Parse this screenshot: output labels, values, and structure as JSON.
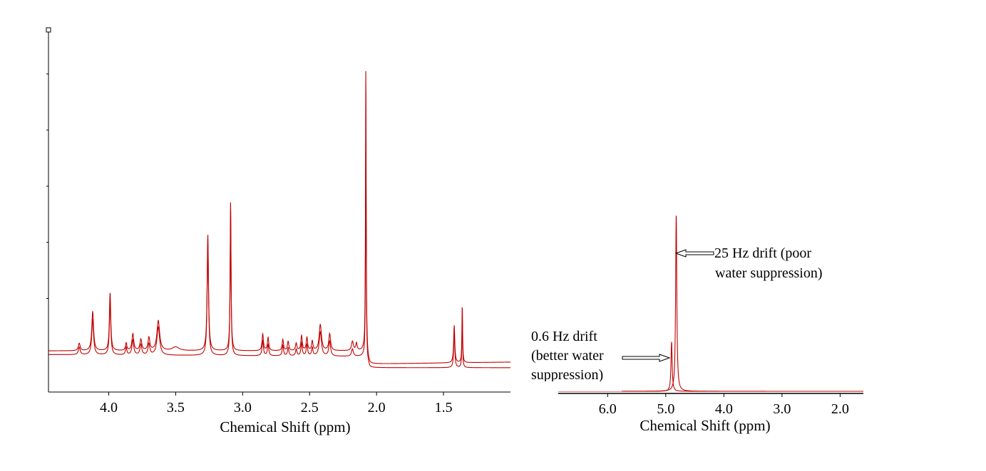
{
  "colors": {
    "trace": "#c00000",
    "axis": "#000000",
    "background": "#ffffff"
  },
  "chart_data": [
    {
      "type": "line",
      "name": "full-spectrum",
      "xlabel": "Chemical Shift (ppm)",
      "ylabel": "",
      "xlim": [
        4.45,
        1.0
      ],
      "x_reversed": true,
      "ylim": [
        0,
        1.0
      ],
      "x_ticks": [
        4.0,
        3.5,
        3.0,
        2.5,
        2.0,
        1.5
      ],
      "x_tick_labels": [
        "4.0",
        "3.5",
        "3.0",
        "2.5",
        "2.0",
        "1.5"
      ],
      "y_ticks": [
        0.25,
        0.4,
        0.55,
        0.7,
        0.85
      ],
      "series": [
        {
          "name": "trace-upper",
          "baseline": [
            [
              4.45,
              0.11
            ],
            [
              2.1,
              0.11
            ],
            [
              2.05,
              0.075
            ],
            [
              1.0,
              0.08
            ]
          ],
          "peaks": [
            [
              4.22,
              0.02,
              0.008
            ],
            [
              4.12,
              0.105,
              0.008
            ],
            [
              3.99,
              0.155,
              0.006
            ],
            [
              3.87,
              0.02,
              0.006
            ],
            [
              3.82,
              0.045,
              0.008
            ],
            [
              3.76,
              0.03,
              0.008
            ],
            [
              3.7,
              0.035,
              0.008
            ],
            [
              3.63,
              0.08,
              0.012
            ],
            [
              3.5,
              0.01,
              0.03
            ],
            [
              3.26,
              0.31,
              0.006
            ],
            [
              3.09,
              0.4,
              0.004
            ],
            [
              2.85,
              0.045,
              0.006
            ],
            [
              2.81,
              0.035,
              0.006
            ],
            [
              2.7,
              0.03,
              0.006
            ],
            [
              2.66,
              0.025,
              0.006
            ],
            [
              2.6,
              0.02,
              0.006
            ],
            [
              2.56,
              0.04,
              0.006
            ],
            [
              2.52,
              0.035,
              0.006
            ],
            [
              2.48,
              0.025,
              0.006
            ],
            [
              2.42,
              0.07,
              0.01
            ],
            [
              2.35,
              0.045,
              0.008
            ],
            [
              2.18,
              0.025,
              0.008
            ],
            [
              2.15,
              0.02,
              0.006
            ],
            [
              2.08,
              0.78,
              0.003
            ],
            [
              1.42,
              0.1,
              0.005
            ],
            [
              1.36,
              0.155,
              0.003
            ]
          ]
        },
        {
          "name": "trace-lower",
          "baseline": [
            [
              4.45,
              0.1
            ],
            [
              2.1,
              0.095
            ],
            [
              2.05,
              0.065
            ],
            [
              1.0,
              0.065
            ]
          ],
          "peaks": [
            [
              4.22,
              0.02,
              0.008
            ],
            [
              4.12,
              0.095,
              0.008
            ],
            [
              3.99,
              0.145,
              0.006
            ],
            [
              3.87,
              0.02,
              0.006
            ],
            [
              3.82,
              0.04,
              0.008
            ],
            [
              3.76,
              0.028,
              0.008
            ],
            [
              3.7,
              0.03,
              0.008
            ],
            [
              3.63,
              0.075,
              0.012
            ],
            [
              3.26,
              0.3,
              0.006
            ],
            [
              3.09,
              0.39,
              0.004
            ],
            [
              2.85,
              0.04,
              0.006
            ],
            [
              2.81,
              0.03,
              0.006
            ],
            [
              2.7,
              0.028,
              0.006
            ],
            [
              2.66,
              0.022,
              0.006
            ],
            [
              2.6,
              0.018,
              0.006
            ],
            [
              2.56,
              0.035,
              0.006
            ],
            [
              2.52,
              0.03,
              0.006
            ],
            [
              2.48,
              0.022,
              0.006
            ],
            [
              2.42,
              0.065,
              0.01
            ],
            [
              2.35,
              0.04,
              0.008
            ],
            [
              2.18,
              0.02,
              0.008
            ],
            [
              2.08,
              0.6,
              0.003
            ],
            [
              1.42,
              0.09,
              0.005
            ],
            [
              1.36,
              0.14,
              0.003
            ]
          ]
        }
      ]
    },
    {
      "type": "line",
      "name": "water-region",
      "xlabel": "Chemical Shift (ppm)",
      "xlim": [
        6.85,
        1.6
      ],
      "x_reversed": true,
      "ylim": [
        0,
        1.0
      ],
      "x_ticks": [
        6.0,
        5.0,
        4.0,
        3.0,
        2.0
      ],
      "x_tick_labels": [
        "6.0",
        "5.0",
        "4.0",
        "3.0",
        "2.0"
      ],
      "series": [
        {
          "name": "0.6 Hz drift",
          "baseline": [
            [
              6.85,
              0.0
            ],
            [
              1.6,
              0.0
            ]
          ],
          "peaks": [
            [
              4.9,
              0.28,
              0.012
            ]
          ]
        },
        {
          "name": "25 Hz drift",
          "baseline": [
            [
              6.85,
              0.0
            ],
            [
              1.6,
              0.0
            ]
          ],
          "peaks": [
            [
              4.82,
              1.0,
              0.012
            ]
          ]
        }
      ],
      "annotations": [
        {
          "name": "annotation-25hz",
          "line1": "25 Hz drift (poor",
          "line2": "water suppression)"
        },
        {
          "name": "annotation-06hz",
          "line1": "0.6 Hz drift",
          "line2": "(better water",
          "line3": "suppression)"
        }
      ]
    }
  ]
}
